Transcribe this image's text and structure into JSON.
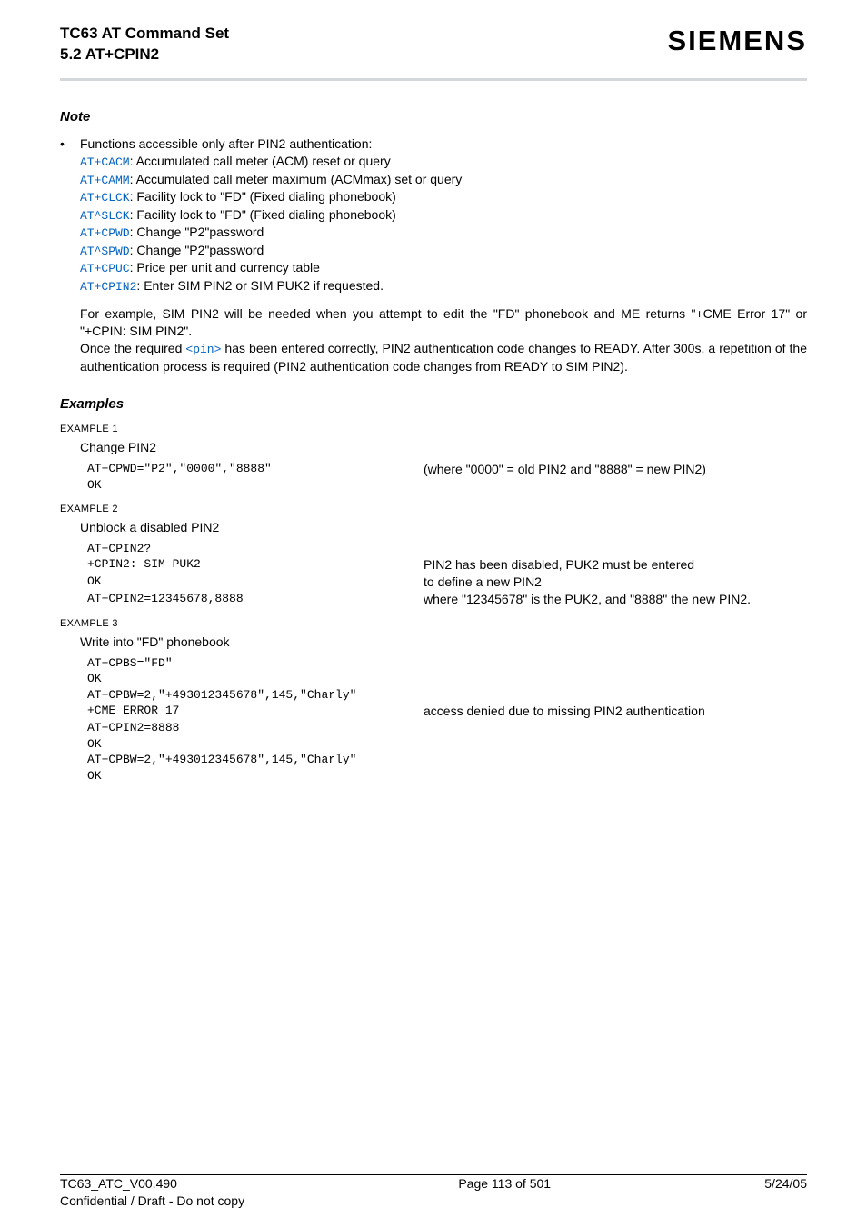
{
  "header": {
    "doc_title": "TC63 AT Command Set",
    "doc_subtitle": "5.2 AT+CPIN2",
    "brand": "SIEMENS"
  },
  "note": {
    "heading": "Note",
    "intro": "Functions accessible only after PIN2 authentication:",
    "items": [
      {
        "cmd": "AT+CACM",
        "desc": ": Accumulated call meter (ACM) reset or query"
      },
      {
        "cmd": "AT+CAMM",
        "desc": ": Accumulated call meter maximum (ACMmax) set or query"
      },
      {
        "cmd": "AT+CLCK",
        "desc": ": Facility lock to \"FD\" (Fixed dialing phonebook)"
      },
      {
        "cmd": "AT^SLCK",
        "desc": ": Facility lock to \"FD\" (Fixed dialing phonebook)"
      },
      {
        "cmd": "AT+CPWD",
        "desc": ": Change \"P2\"password"
      },
      {
        "cmd": "AT^SPWD",
        "desc": ": Change \"P2\"password"
      },
      {
        "cmd": "AT+CPUC",
        "desc": ": Price per unit and currency table"
      },
      {
        "cmd": "AT+CPIN2",
        "desc": ": Enter SIM PIN2 or SIM PUK2 if requested."
      }
    ],
    "para1": "For example, SIM PIN2 will be needed when you attempt to edit the \"FD\" phonebook and ME returns \"+CME Error 17\" or \"+CPIN: SIM PIN2\".",
    "para2a": "Once the required ",
    "para2_pin": "<pin>",
    "para2b": " has been entered correctly, PIN2 authentication code changes to READY. After 300s, a repetition of the authentication process is required (PIN2 authentication code changes from READY to SIM PIN2)."
  },
  "examples": {
    "heading": "Examples",
    "ex1": {
      "label": "EXAMPLE 1",
      "desc": "Change PIN2",
      "rows": [
        {
          "left": "AT+CPWD=\"P2\",\"0000\",\"8888\"",
          "right": "(where \"0000\" = old PIN2 and \"8888\" = new PIN2)"
        },
        {
          "left": "OK",
          "right": ""
        }
      ]
    },
    "ex2": {
      "label": "EXAMPLE 2",
      "desc": "Unblock a disabled PIN2",
      "rows": [
        {
          "left": "AT+CPIN2?",
          "right": ""
        },
        {
          "left": "+CPIN2: SIM PUK2",
          "right": "PIN2 has been disabled, PUK2 must be entered"
        },
        {
          "left": "OK",
          "right": "to define a new PIN2"
        },
        {
          "left": "AT+CPIN2=12345678,8888",
          "right": "where \"12345678\" is the PUK2, and \"8888\" the new PIN2."
        }
      ]
    },
    "ex3": {
      "label": "EXAMPLE 3",
      "desc": "Write into \"FD\" phonebook",
      "rows": [
        {
          "left": "AT+CPBS=\"FD\"",
          "right": ""
        },
        {
          "left": "OK",
          "right": ""
        },
        {
          "left": "AT+CPBW=2,\"+493012345678\",145,\"Charly\"",
          "right": ""
        },
        {
          "left": "+CME ERROR 17",
          "right": "access denied due to missing PIN2 authentication"
        },
        {
          "left": "AT+CPIN2=8888",
          "right": ""
        },
        {
          "left": "OK",
          "right": ""
        },
        {
          "left": "AT+CPBW=2,\"+493012345678\",145,\"Charly\"",
          "right": ""
        },
        {
          "left": "OK",
          "right": ""
        }
      ]
    }
  },
  "footer": {
    "left1": "TC63_ATC_V00.490",
    "left2": "Confidential / Draft - Do not copy",
    "center": "Page 113 of 501",
    "right": "5/24/05"
  }
}
